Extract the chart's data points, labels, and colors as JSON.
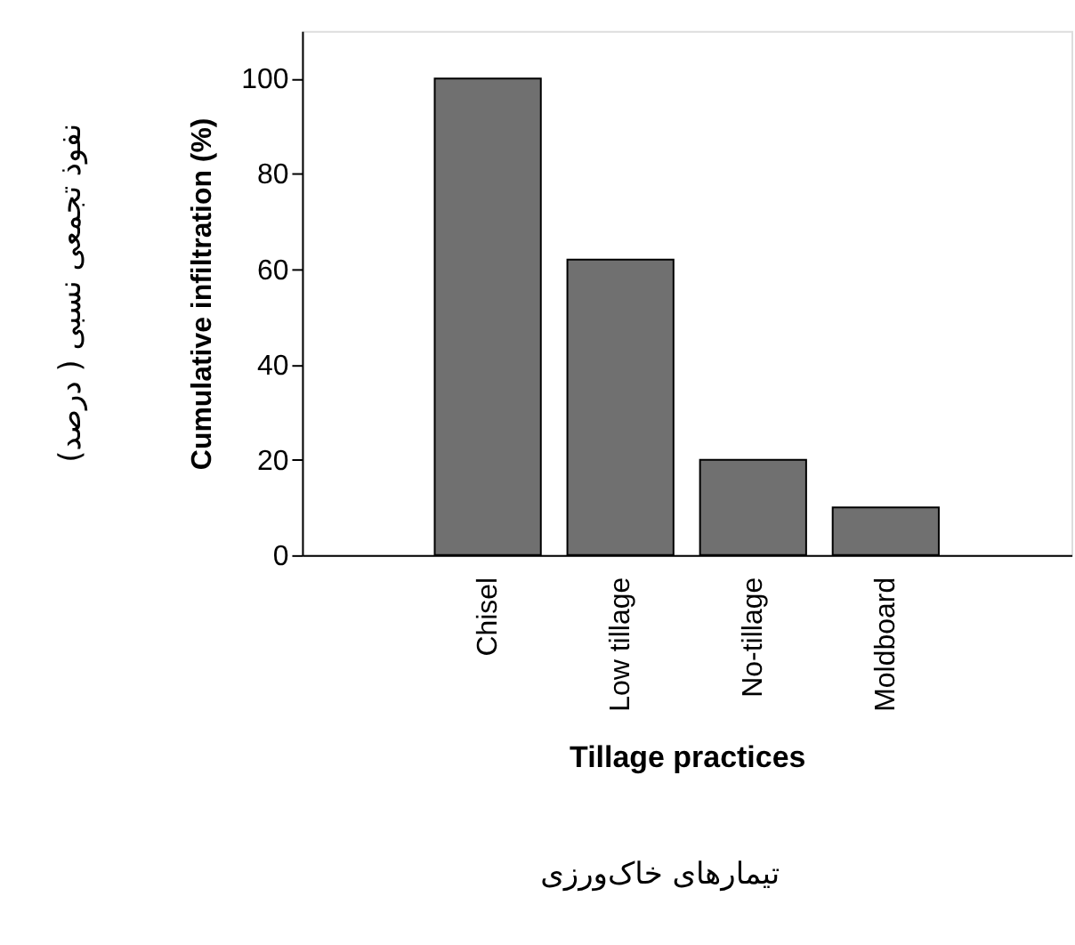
{
  "chart_data": {
    "type": "bar",
    "categories": [
      "Chisel",
      "Low tillage",
      "No-tillage",
      "Moldboard"
    ],
    "values": [
      100,
      62,
      20,
      10
    ],
    "color": "#707070",
    "ylim": [
      0,
      110
    ],
    "yticks": [
      0,
      20,
      40,
      60,
      80,
      100
    ],
    "ylabel": "Cumulative infiltration (%)",
    "xlabel": "Tillage practices",
    "annotations": [
      "نفوذ تجمعی نسبی ( درصد)",
      "تیمارهای خاک‌ورزی"
    ],
    "grid": false
  }
}
